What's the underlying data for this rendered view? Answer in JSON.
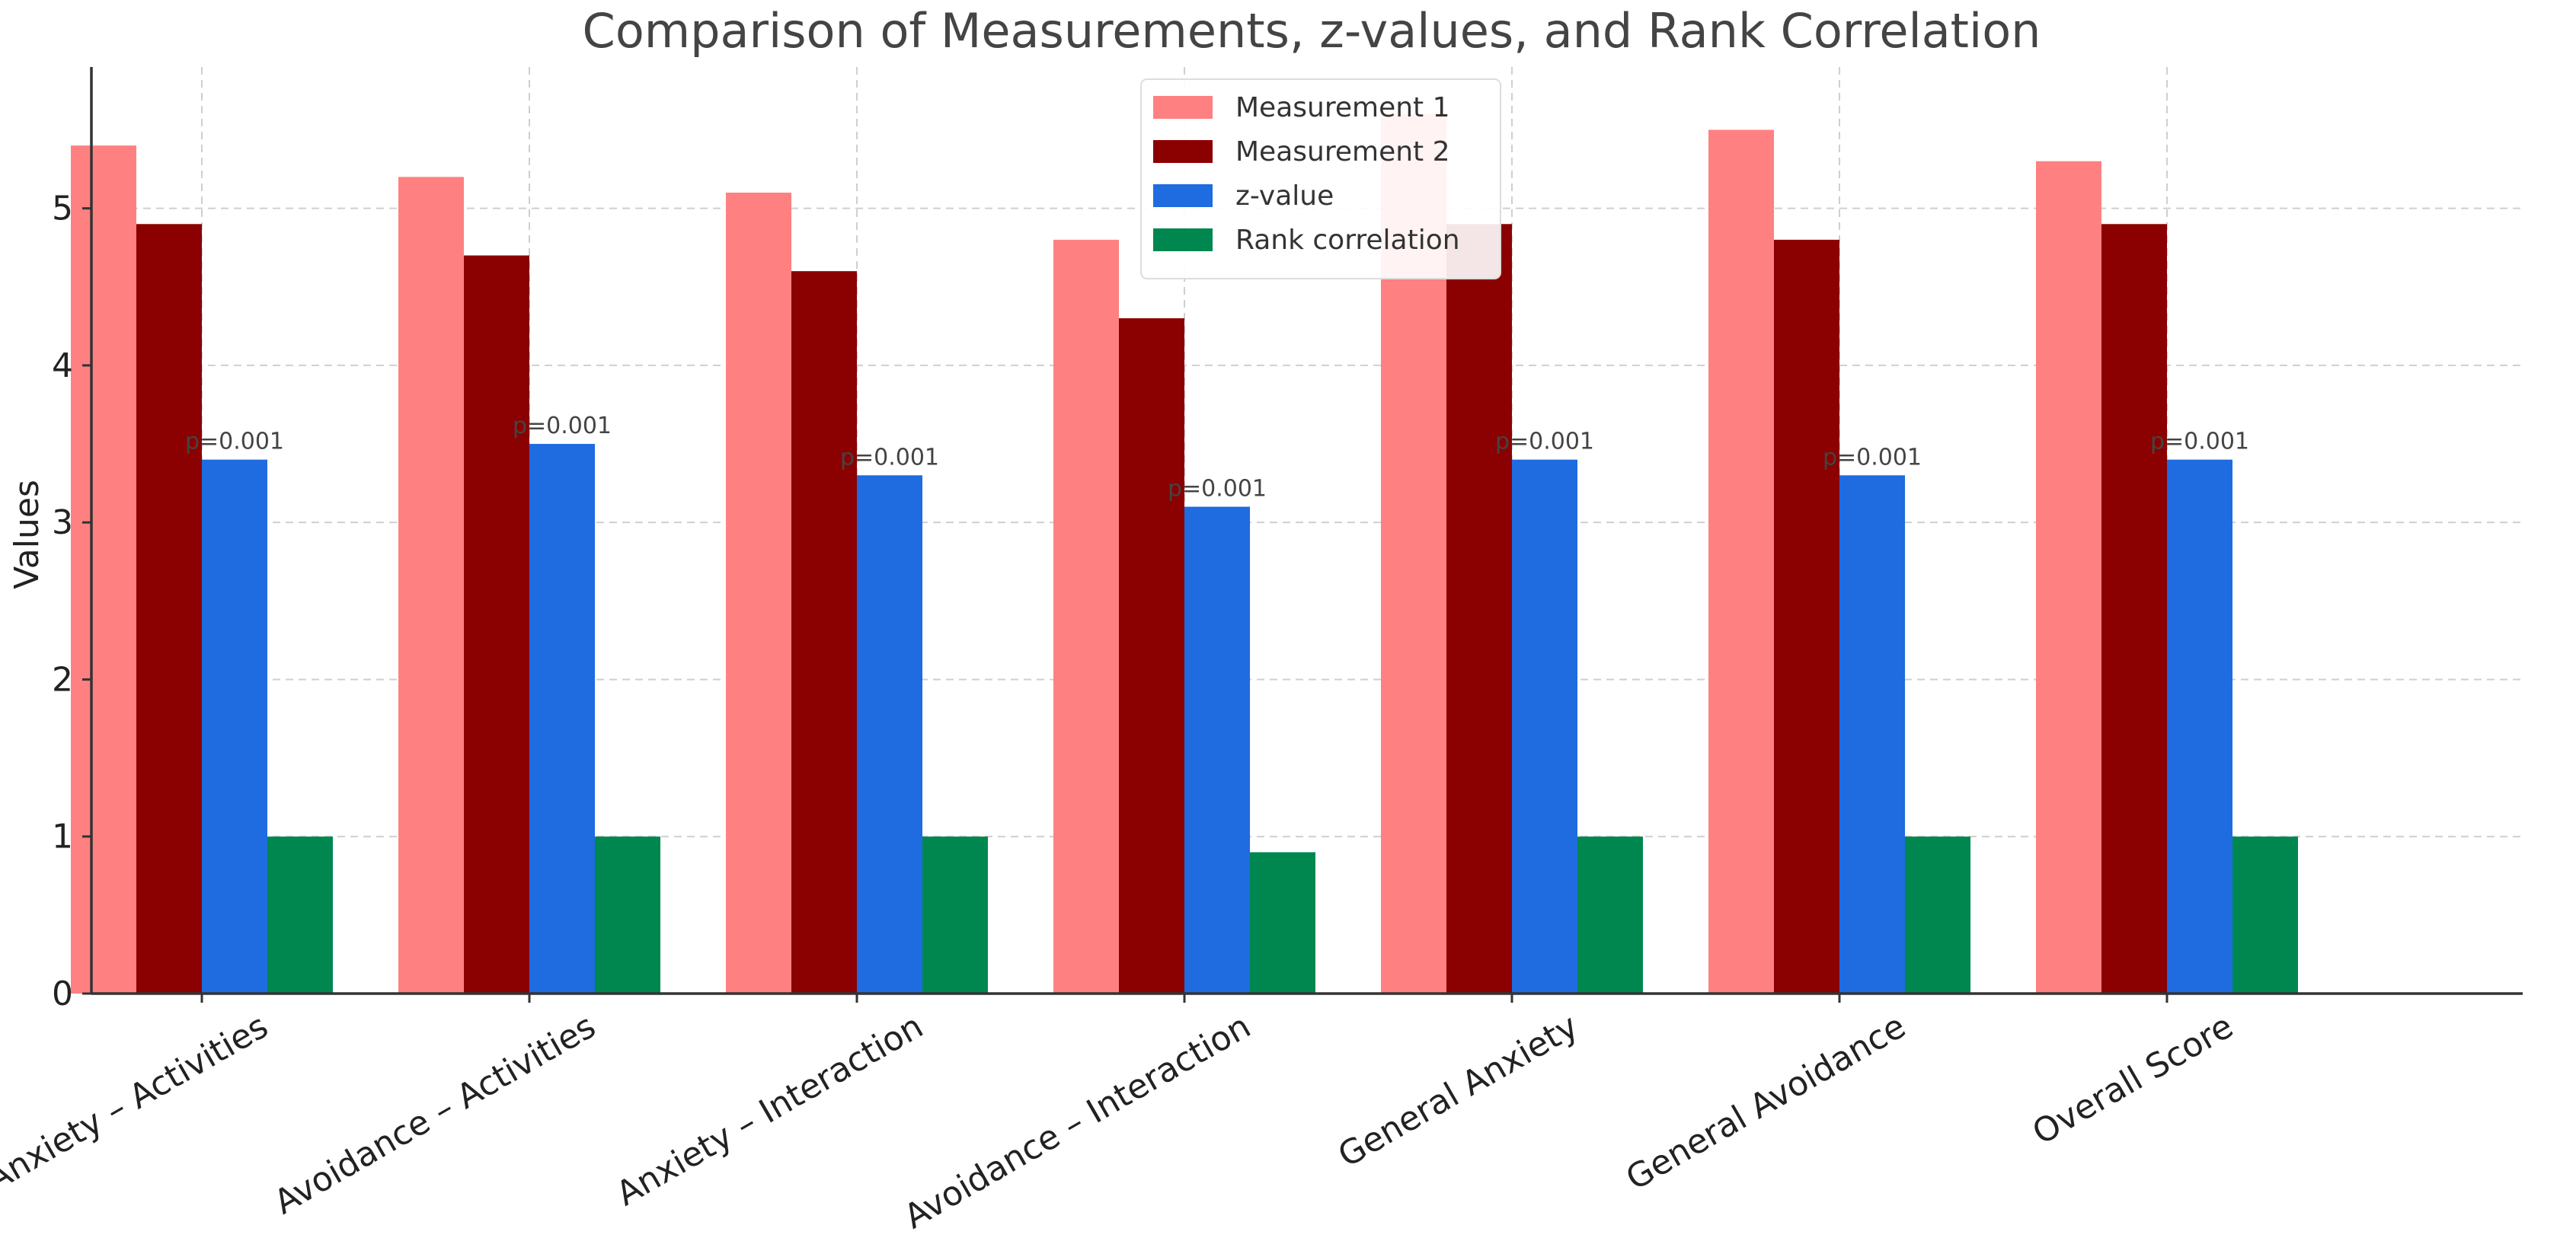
{
  "chart_data": {
    "type": "bar",
    "title": "Comparison of Measurements, z-values, and Rank Correlation",
    "xlabel": "",
    "ylabel": "Values",
    "ylim": [
      0,
      5.9
    ],
    "yticks": [
      0,
      1,
      2,
      3,
      4,
      5
    ],
    "grid": true,
    "legend_position": "top-center",
    "categories": [
      "Anxiety – Activities",
      "Avoidance – Activities",
      "Anxiety – Interaction",
      "Avoidance – Interaction",
      "General Anxiety",
      "General Avoidance",
      "Overall Score"
    ],
    "series": [
      {
        "name": "Measurement 1",
        "color": "#ff8080",
        "values": [
          5.4,
          5.2,
          5.1,
          4.8,
          5.6,
          5.5,
          5.3
        ]
      },
      {
        "name": "Measurement 2",
        "color": "#8b0000",
        "values": [
          4.9,
          4.7,
          4.6,
          4.3,
          4.9,
          4.8,
          4.9
        ]
      },
      {
        "name": "z-value",
        "color": "#1f6be0",
        "values": [
          3.4,
          3.5,
          3.3,
          3.1,
          3.4,
          3.3,
          3.4
        ]
      },
      {
        "name": "Rank correlation",
        "color": "#00874f",
        "values": [
          1.0,
          1.0,
          1.0,
          0.9,
          1.0,
          1.0,
          1.0
        ]
      }
    ],
    "annotations": [
      "p=0.001",
      "p=0.001",
      "p=0.001",
      "p=0.001",
      "p=0.001",
      "p=0.001",
      "p=0.001"
    ],
    "annotation_series": "z-value"
  }
}
